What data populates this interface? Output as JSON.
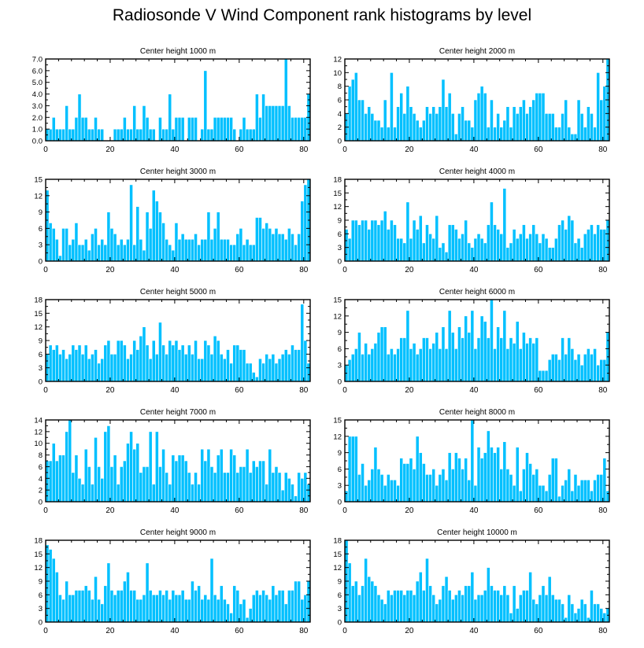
{
  "title": "Radiosonde V Wind Component rank histograms by level",
  "colors": {
    "bar": "#00C0FF",
    "bar_edge": "#ffffff",
    "axis": "#000000"
  },
  "chart_data": [
    {
      "type": "bar",
      "title": "Center height 1000 m",
      "xlim": [
        0,
        82
      ],
      "ylim": [
        0,
        7
      ],
      "xticks": [
        "0",
        "20",
        "40",
        "60",
        "80"
      ],
      "xtick_values": [
        0,
        20,
        40,
        60,
        80
      ],
      "yticks": [
        "0.0",
        "1.0",
        "2.0",
        "3.0",
        "4.0",
        "5.0",
        "6.0",
        "7.0"
      ],
      "ytick_values": [
        0,
        1,
        2,
        3,
        4,
        5,
        6,
        7
      ],
      "values": [
        1,
        1,
        2,
        1,
        1,
        1,
        3,
        1,
        1,
        2,
        4,
        2,
        2,
        1,
        1,
        2,
        1,
        1,
        0,
        0,
        0,
        1,
        1,
        1,
        2,
        1,
        1,
        3,
        1,
        1,
        3,
        2,
        1,
        1,
        0,
        2,
        1,
        1,
        4,
        1,
        2,
        2,
        2,
        0,
        2,
        2,
        2,
        0,
        1,
        6,
        1,
        1,
        2,
        2,
        2,
        2,
        2,
        2,
        1,
        0,
        1,
        2,
        1,
        1,
        1,
        4,
        2,
        4,
        3,
        3,
        3,
        3,
        3,
        3,
        7,
        3,
        2,
        2,
        2,
        2,
        2,
        4
      ]
    },
    {
      "type": "bar",
      "title": "Center height 2000 m",
      "xlim": [
        0,
        82
      ],
      "ylim": [
        0,
        12
      ],
      "xticks": [
        "0",
        "20",
        "40",
        "60",
        "80"
      ],
      "xtick_values": [
        0,
        20,
        40,
        60,
        80
      ],
      "yticks": [
        "0",
        "2",
        "4",
        "6",
        "8",
        "10",
        "12"
      ],
      "ytick_values": [
        0,
        2,
        4,
        6,
        8,
        10,
        12
      ],
      "values": [
        4,
        8,
        9,
        10,
        6,
        6,
        4,
        5,
        4,
        3,
        3,
        2,
        6,
        2,
        10,
        2,
        5,
        7,
        4,
        8,
        5,
        4,
        3,
        2,
        3,
        5,
        4,
        5,
        4,
        5,
        9,
        5,
        7,
        4,
        1,
        4,
        5,
        3,
        3,
        2,
        6,
        7,
        8,
        7,
        2,
        6,
        2,
        4,
        2,
        3,
        5,
        2,
        5,
        4,
        5,
        6,
        4,
        5,
        6,
        7,
        7,
        7,
        4,
        4,
        4,
        2,
        2,
        4,
        6,
        2,
        1,
        1,
        6,
        4,
        2,
        5,
        4,
        2,
        10,
        6,
        8,
        12
      ]
    },
    {
      "type": "bar",
      "title": "Center height 3000 m",
      "xlim": [
        0,
        82
      ],
      "ylim": [
        0,
        15
      ],
      "xticks": [
        "0",
        "20",
        "40",
        "60",
        "80"
      ],
      "xtick_values": [
        0,
        20,
        40,
        60,
        80
      ],
      "yticks": [
        "0",
        "3",
        "6",
        "9",
        "12",
        "15"
      ],
      "ytick_values": [
        0,
        3,
        6,
        9,
        12,
        15
      ],
      "values": [
        13,
        7,
        6,
        4,
        1,
        6,
        6,
        3,
        4,
        7,
        3,
        3,
        4,
        2,
        5,
        6,
        3,
        4,
        3,
        9,
        6,
        5,
        3,
        4,
        3,
        4,
        14,
        3,
        10,
        4,
        2,
        9,
        6,
        13,
        11,
        9,
        7,
        4,
        3,
        2,
        7,
        4,
        5,
        4,
        4,
        4,
        5,
        3,
        4,
        4,
        9,
        4,
        6,
        9,
        4,
        4,
        4,
        3,
        3,
        5,
        6,
        3,
        4,
        3,
        3,
        8,
        8,
        6,
        7,
        6,
        5,
        6,
        5,
        5,
        4,
        6,
        5,
        3,
        5,
        11,
        14,
        15
      ]
    },
    {
      "type": "bar",
      "title": "Center height 4000 m",
      "xlim": [
        0,
        82
      ],
      "ylim": [
        0,
        18
      ],
      "xticks": [
        "0",
        "20",
        "40",
        "60",
        "80"
      ],
      "xtick_values": [
        0,
        20,
        40,
        60,
        80
      ],
      "yticks": [
        "0",
        "3",
        "6",
        "9",
        "12",
        "15",
        "18"
      ],
      "ytick_values": [
        0,
        3,
        6,
        9,
        12,
        15,
        18
      ],
      "values": [
        7,
        5,
        9,
        9,
        8,
        9,
        9,
        7,
        9,
        9,
        8,
        9,
        11,
        7,
        9,
        8,
        5,
        5,
        4,
        13,
        5,
        9,
        7,
        10,
        4,
        8,
        6,
        5,
        10,
        3,
        4,
        2,
        8,
        8,
        7,
        5,
        6,
        9,
        4,
        3,
        5,
        6,
        5,
        4,
        8,
        13,
        8,
        7,
        6,
        16,
        3,
        4,
        7,
        5,
        6,
        8,
        5,
        6,
        8,
        6,
        4,
        6,
        5,
        3,
        3,
        5,
        8,
        9,
        7,
        10,
        9,
        4,
        5,
        3,
        6,
        7,
        8,
        6,
        8,
        7,
        7,
        9
      ]
    },
    {
      "type": "bar",
      "title": "Center height 5000 m",
      "xlim": [
        0,
        82
      ],
      "ylim": [
        0,
        18
      ],
      "xticks": [
        "0",
        "20",
        "40",
        "60",
        "80"
      ],
      "xtick_values": [
        0,
        20,
        40,
        60,
        80
      ],
      "yticks": [
        "0",
        "3",
        "6",
        "9",
        "12",
        "15",
        "18"
      ],
      "ytick_values": [
        0,
        3,
        6,
        9,
        12,
        15,
        18
      ],
      "values": [
        6,
        8,
        7,
        8,
        6,
        7,
        5,
        6,
        8,
        7,
        8,
        6,
        8,
        5,
        6,
        7,
        4,
        5,
        8,
        9,
        6,
        6,
        9,
        9,
        8,
        5,
        6,
        9,
        7,
        10,
        12,
        8,
        5,
        9,
        6,
        13,
        8,
        6,
        9,
        8,
        9,
        7,
        8,
        6,
        8,
        6,
        9,
        5,
        5,
        9,
        8,
        6,
        10,
        9,
        6,
        5,
        7,
        4,
        8,
        8,
        7,
        7,
        4,
        4,
        2,
        1,
        5,
        4,
        6,
        5,
        6,
        4,
        5,
        6,
        7,
        6,
        8,
        7,
        7,
        17,
        9,
        4
      ]
    },
    {
      "type": "bar",
      "title": "Center height 6000 m",
      "xlim": [
        0,
        82
      ],
      "ylim": [
        0,
        15
      ],
      "xticks": [
        "0",
        "20",
        "40",
        "60",
        "80"
      ],
      "xtick_values": [
        0,
        20,
        40,
        60,
        80
      ],
      "yticks": [
        "0",
        "3",
        "6",
        "9",
        "12",
        "15"
      ],
      "ytick_values": [
        0,
        3,
        6,
        9,
        12,
        15
      ],
      "values": [
        3,
        4,
        5,
        6,
        9,
        5,
        7,
        5,
        6,
        7,
        9,
        10,
        10,
        5,
        6,
        5,
        6,
        8,
        8,
        13,
        6,
        7,
        5,
        6,
        8,
        8,
        6,
        7,
        9,
        6,
        10,
        6,
        13,
        9,
        6,
        10,
        8,
        12,
        9,
        13,
        6,
        8,
        12,
        11,
        8,
        15,
        6,
        10,
        8,
        13,
        6,
        8,
        7,
        11,
        6,
        9,
        7,
        8,
        7,
        8,
        2,
        2,
        2,
        4,
        5,
        5,
        4,
        8,
        5,
        8,
        6,
        4,
        5,
        3,
        5,
        6,
        5,
        6,
        3,
        4,
        4,
        9
      ]
    },
    {
      "type": "bar",
      "title": "Center height 7000 m",
      "xlim": [
        0,
        82
      ],
      "ylim": [
        0,
        14
      ],
      "xticks": [
        "0",
        "20",
        "40",
        "60",
        "80"
      ],
      "xtick_values": [
        0,
        20,
        40,
        60,
        80
      ],
      "yticks": [
        "0",
        "2",
        "4",
        "6",
        "8",
        "10",
        "12",
        "14"
      ],
      "ytick_values": [
        0,
        2,
        4,
        6,
        8,
        10,
        12,
        14
      ],
      "values": [
        7,
        7,
        10,
        7,
        8,
        8,
        12,
        14,
        5,
        8,
        4,
        3,
        9,
        6,
        3,
        11,
        6,
        4,
        12,
        13,
        6,
        8,
        3,
        6,
        7,
        10,
        12,
        9,
        10,
        5,
        6,
        6,
        12,
        3,
        12,
        6,
        9,
        5,
        3,
        8,
        7,
        8,
        8,
        7,
        5,
        3,
        5,
        3,
        9,
        7,
        9,
        6,
        5,
        8,
        9,
        5,
        5,
        9,
        8,
        5,
        6,
        6,
        9,
        5,
        7,
        6,
        7,
        7,
        3,
        9,
        5,
        6,
        5,
        2,
        5,
        4,
        3,
        1,
        5,
        4,
        5,
        3
      ]
    },
    {
      "type": "bar",
      "title": "Center height 8000 m",
      "xlim": [
        0,
        82
      ],
      "ylim": [
        0,
        15
      ],
      "xticks": [
        "0",
        "20",
        "40",
        "60",
        "80"
      ],
      "xtick_values": [
        0,
        20,
        40,
        60,
        80
      ],
      "yticks": [
        "0",
        "3",
        "6",
        "9",
        "12",
        "15"
      ],
      "ytick_values": [
        0,
        3,
        6,
        9,
        12,
        15
      ],
      "values": [
        2,
        12,
        12,
        12,
        5,
        7,
        3,
        4,
        6,
        10,
        6,
        5,
        3,
        5,
        4,
        4,
        3,
        8,
        7,
        7,
        8,
        6,
        12,
        9,
        7,
        5,
        5,
        6,
        3,
        5,
        6,
        4,
        9,
        6,
        9,
        8,
        6,
        8,
        4,
        15,
        3,
        10,
        8,
        9,
        13,
        10,
        9,
        10,
        6,
        11,
        6,
        5,
        3,
        10,
        2,
        6,
        9,
        7,
        5,
        6,
        3,
        3,
        2,
        5,
        8,
        8,
        1,
        3,
        4,
        6,
        2,
        5,
        3,
        4,
        4,
        4,
        2,
        4,
        5,
        5,
        8,
        2
      ]
    },
    {
      "type": "bar",
      "title": "Center height 9000 m",
      "xlim": [
        0,
        82
      ],
      "ylim": [
        0,
        18
      ],
      "xticks": [
        "0",
        "20",
        "40",
        "60",
        "80"
      ],
      "xtick_values": [
        0,
        20,
        40,
        60,
        80
      ],
      "yticks": [
        "0",
        "3",
        "6",
        "9",
        "12",
        "15",
        "18"
      ],
      "ytick_values": [
        0,
        3,
        6,
        9,
        12,
        15,
        18
      ],
      "values": [
        17,
        16,
        14,
        11,
        6,
        5,
        9,
        6,
        6,
        7,
        7,
        7,
        8,
        7,
        5,
        10,
        5,
        4,
        8,
        13,
        7,
        6,
        7,
        7,
        9,
        11,
        7,
        7,
        5,
        5,
        6,
        13,
        7,
        6,
        6,
        7,
        6,
        7,
        5,
        7,
        6,
        6,
        7,
        5,
        5,
        9,
        7,
        8,
        5,
        6,
        5,
        14,
        6,
        5,
        8,
        5,
        4,
        2,
        8,
        7,
        4,
        5,
        1,
        3,
        6,
        7,
        6,
        7,
        6,
        5,
        8,
        6,
        7,
        7,
        4,
        7,
        7,
        9,
        9,
        5,
        6,
        9
      ]
    },
    {
      "type": "bar",
      "title": "Center height 10000 m",
      "xlim": [
        0,
        82
      ],
      "ylim": [
        0,
        18
      ],
      "xticks": [
        "0",
        "20",
        "40",
        "60",
        "80"
      ],
      "xtick_values": [
        0,
        20,
        40,
        60,
        80
      ],
      "yticks": [
        "0",
        "3",
        "6",
        "9",
        "12",
        "15",
        "18"
      ],
      "ytick_values": [
        0,
        3,
        6,
        9,
        12,
        15,
        18
      ],
      "values": [
        18,
        13,
        8,
        9,
        6,
        8,
        14,
        10,
        9,
        8,
        6,
        5,
        4,
        7,
        6,
        7,
        7,
        7,
        6,
        7,
        7,
        6,
        9,
        11,
        7,
        14,
        8,
        6,
        4,
        5,
        8,
        10,
        7,
        5,
        6,
        7,
        6,
        8,
        8,
        11,
        5,
        6,
        6,
        7,
        12,
        8,
        7,
        7,
        6,
        8,
        6,
        2,
        8,
        3,
        6,
        7,
        7,
        11,
        5,
        4,
        6,
        8,
        6,
        10,
        6,
        5,
        5,
        4,
        1,
        6,
        4,
        2,
        3,
        5,
        4,
        1,
        7,
        4,
        4,
        3,
        2,
        3
      ]
    }
  ]
}
